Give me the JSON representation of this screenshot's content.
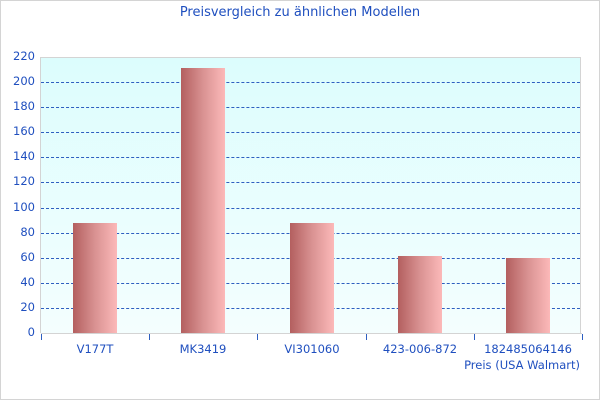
{
  "chart_data": {
    "type": "bar",
    "title": "Preisvergleich zu ähnlichen Modellen",
    "xlabel": "Preis (USA Walmart)",
    "ylabel": "",
    "categories": [
      "V177T",
      "MK3419",
      "VI301060",
      "423-006-872",
      "182485064146"
    ],
    "values": [
      88,
      211,
      88,
      61,
      60
    ],
    "ylim": [
      0,
      220
    ],
    "yticks": [
      0,
      20,
      40,
      60,
      80,
      100,
      120,
      140,
      160,
      180,
      200,
      220
    ],
    "grid": true,
    "legend": null,
    "colors": {
      "bar_dark": "#b35f5f",
      "bar_light": "#fcb9b9",
      "text": "#1f4fbf",
      "grid": "#2e5fc0",
      "plot_bg_top": "#dcfdfd",
      "plot_bg_bottom": "#f4fefe"
    }
  }
}
